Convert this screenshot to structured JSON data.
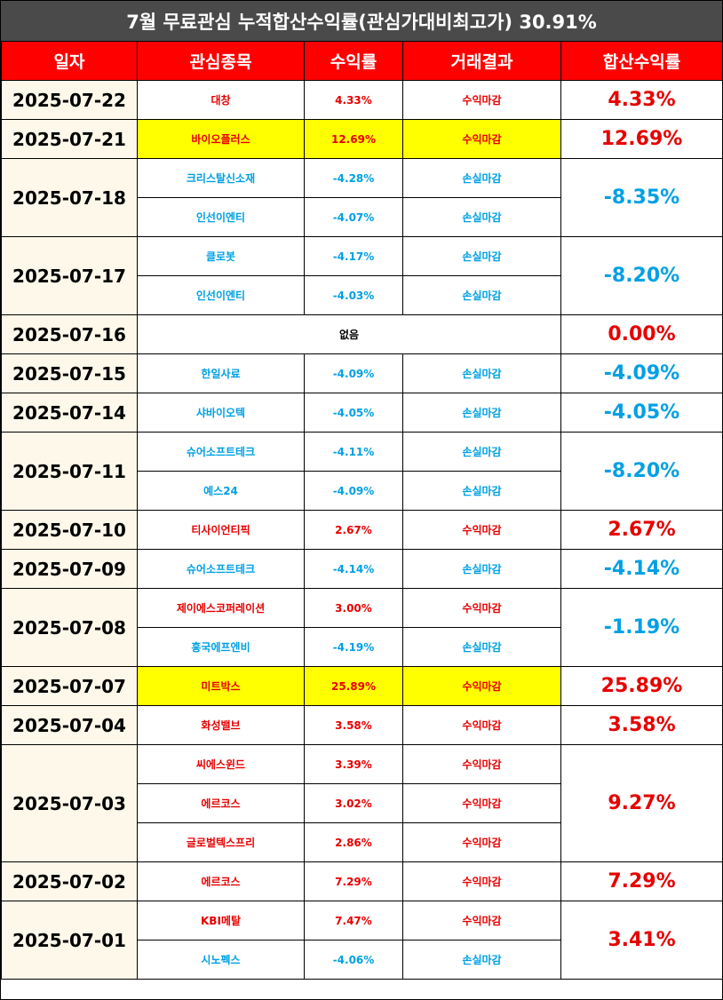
{
  "title": "7월 무료관심 누적합산수익률(관심가대비최고가) 30.91%",
  "headers": [
    "일자",
    "관심종목",
    "수익률",
    "거래결과",
    "합산수익률"
  ],
  "colors": {
    "header_bg": "#ff0000",
    "title_bg": "#4a4a4a",
    "gain": "#e60000",
    "loss": "#00a0e3",
    "highlight": "#ffff00",
    "date_bg": "#fdf8e9"
  },
  "days": [
    {
      "date": "2025-07-22",
      "total": "4.33%",
      "trend": "up",
      "stocks": [
        {
          "name": "대창",
          "return": "4.33%",
          "result": "수익마감",
          "trend": "up",
          "highlight": false
        }
      ]
    },
    {
      "date": "2025-07-21",
      "total": "12.69%",
      "trend": "up",
      "stocks": [
        {
          "name": "바이오플러스",
          "return": "12.69%",
          "result": "수익마감",
          "trend": "up",
          "highlight": true
        }
      ]
    },
    {
      "date": "2025-07-18",
      "total": "-8.35%",
      "trend": "down",
      "stocks": [
        {
          "name": "크리스탈신소재",
          "return": "-4.28%",
          "result": "손실마감",
          "trend": "down",
          "highlight": false
        },
        {
          "name": "인선이엔티",
          "return": "-4.07%",
          "result": "손실마감",
          "trend": "down",
          "highlight": false
        }
      ]
    },
    {
      "date": "2025-07-17",
      "total": "-8.20%",
      "trend": "down",
      "stocks": [
        {
          "name": "클로봇",
          "return": "-4.17%",
          "result": "손실마감",
          "trend": "down",
          "highlight": false
        },
        {
          "name": "인선이엔티",
          "return": "-4.03%",
          "result": "손실마감",
          "trend": "down",
          "highlight": false
        }
      ]
    },
    {
      "date": "2025-07-16",
      "total": "0.00%",
      "trend": "up",
      "empty": "없음",
      "stocks": []
    },
    {
      "date": "2025-07-15",
      "total": "-4.09%",
      "trend": "down",
      "stocks": [
        {
          "name": "한일사료",
          "return": "-4.09%",
          "result": "손실마감",
          "trend": "down",
          "highlight": false
        }
      ]
    },
    {
      "date": "2025-07-14",
      "total": "-4.05%",
      "trend": "down",
      "stocks": [
        {
          "name": "샤바이오텍",
          "return": "-4.05%",
          "result": "손실마감",
          "trend": "down",
          "highlight": false
        }
      ]
    },
    {
      "date": "2025-07-11",
      "total": "-8.20%",
      "trend": "down",
      "stocks": [
        {
          "name": "슈어소프트테크",
          "return": "-4.11%",
          "result": "손실마감",
          "trend": "down",
          "highlight": false
        },
        {
          "name": "예스24",
          "return": "-4.09%",
          "result": "손실마감",
          "trend": "down",
          "highlight": false
        }
      ]
    },
    {
      "date": "2025-07-10",
      "total": "2.67%",
      "trend": "up",
      "stocks": [
        {
          "name": "티사이언티픽",
          "return": "2.67%",
          "result": "수익마감",
          "trend": "up",
          "highlight": false
        }
      ]
    },
    {
      "date": "2025-07-09",
      "total": "-4.14%",
      "trend": "down",
      "stocks": [
        {
          "name": "슈어소프트테크",
          "return": "-4.14%",
          "result": "손실마감",
          "trend": "down",
          "highlight": false
        }
      ]
    },
    {
      "date": "2025-07-08",
      "total": "-1.19%",
      "trend": "down",
      "stocks": [
        {
          "name": "제이에스코퍼레이션",
          "return": "3.00%",
          "result": "수익마감",
          "trend": "up",
          "highlight": false
        },
        {
          "name": "흥국에프엔비",
          "return": "-4.19%",
          "result": "손실마감",
          "trend": "down",
          "highlight": false
        }
      ]
    },
    {
      "date": "2025-07-07",
      "total": "25.89%",
      "trend": "up",
      "stocks": [
        {
          "name": "미트박스",
          "return": "25.89%",
          "result": "수익마감",
          "trend": "up",
          "highlight": true
        }
      ]
    },
    {
      "date": "2025-07-04",
      "total": "3.58%",
      "trend": "up",
      "stocks": [
        {
          "name": "화성밸브",
          "return": "3.58%",
          "result": "수익마감",
          "trend": "up",
          "highlight": false
        }
      ]
    },
    {
      "date": "2025-07-03",
      "total": "9.27%",
      "trend": "up",
      "stocks": [
        {
          "name": "씨에스윈드",
          "return": "3.39%",
          "result": "수익마감",
          "trend": "up",
          "highlight": false
        },
        {
          "name": "에르코스",
          "return": "3.02%",
          "result": "수익마감",
          "trend": "up",
          "highlight": false
        },
        {
          "name": "글로벌텍스프리",
          "return": "2.86%",
          "result": "수익마감",
          "trend": "up",
          "highlight": false
        }
      ]
    },
    {
      "date": "2025-07-02",
      "total": "7.29%",
      "trend": "up",
      "stocks": [
        {
          "name": "에르코스",
          "return": "7.29%",
          "result": "수익마감",
          "trend": "up",
          "highlight": false
        }
      ]
    },
    {
      "date": "2025-07-01",
      "total": "3.41%",
      "trend": "up",
      "stocks": [
        {
          "name": "KBI메탈",
          "return": "7.47%",
          "result": "수익마감",
          "trend": "up",
          "highlight": false
        },
        {
          "name": "시노펙스",
          "return": "-4.06%",
          "result": "손실마감",
          "trend": "down",
          "highlight": false
        }
      ]
    }
  ]
}
